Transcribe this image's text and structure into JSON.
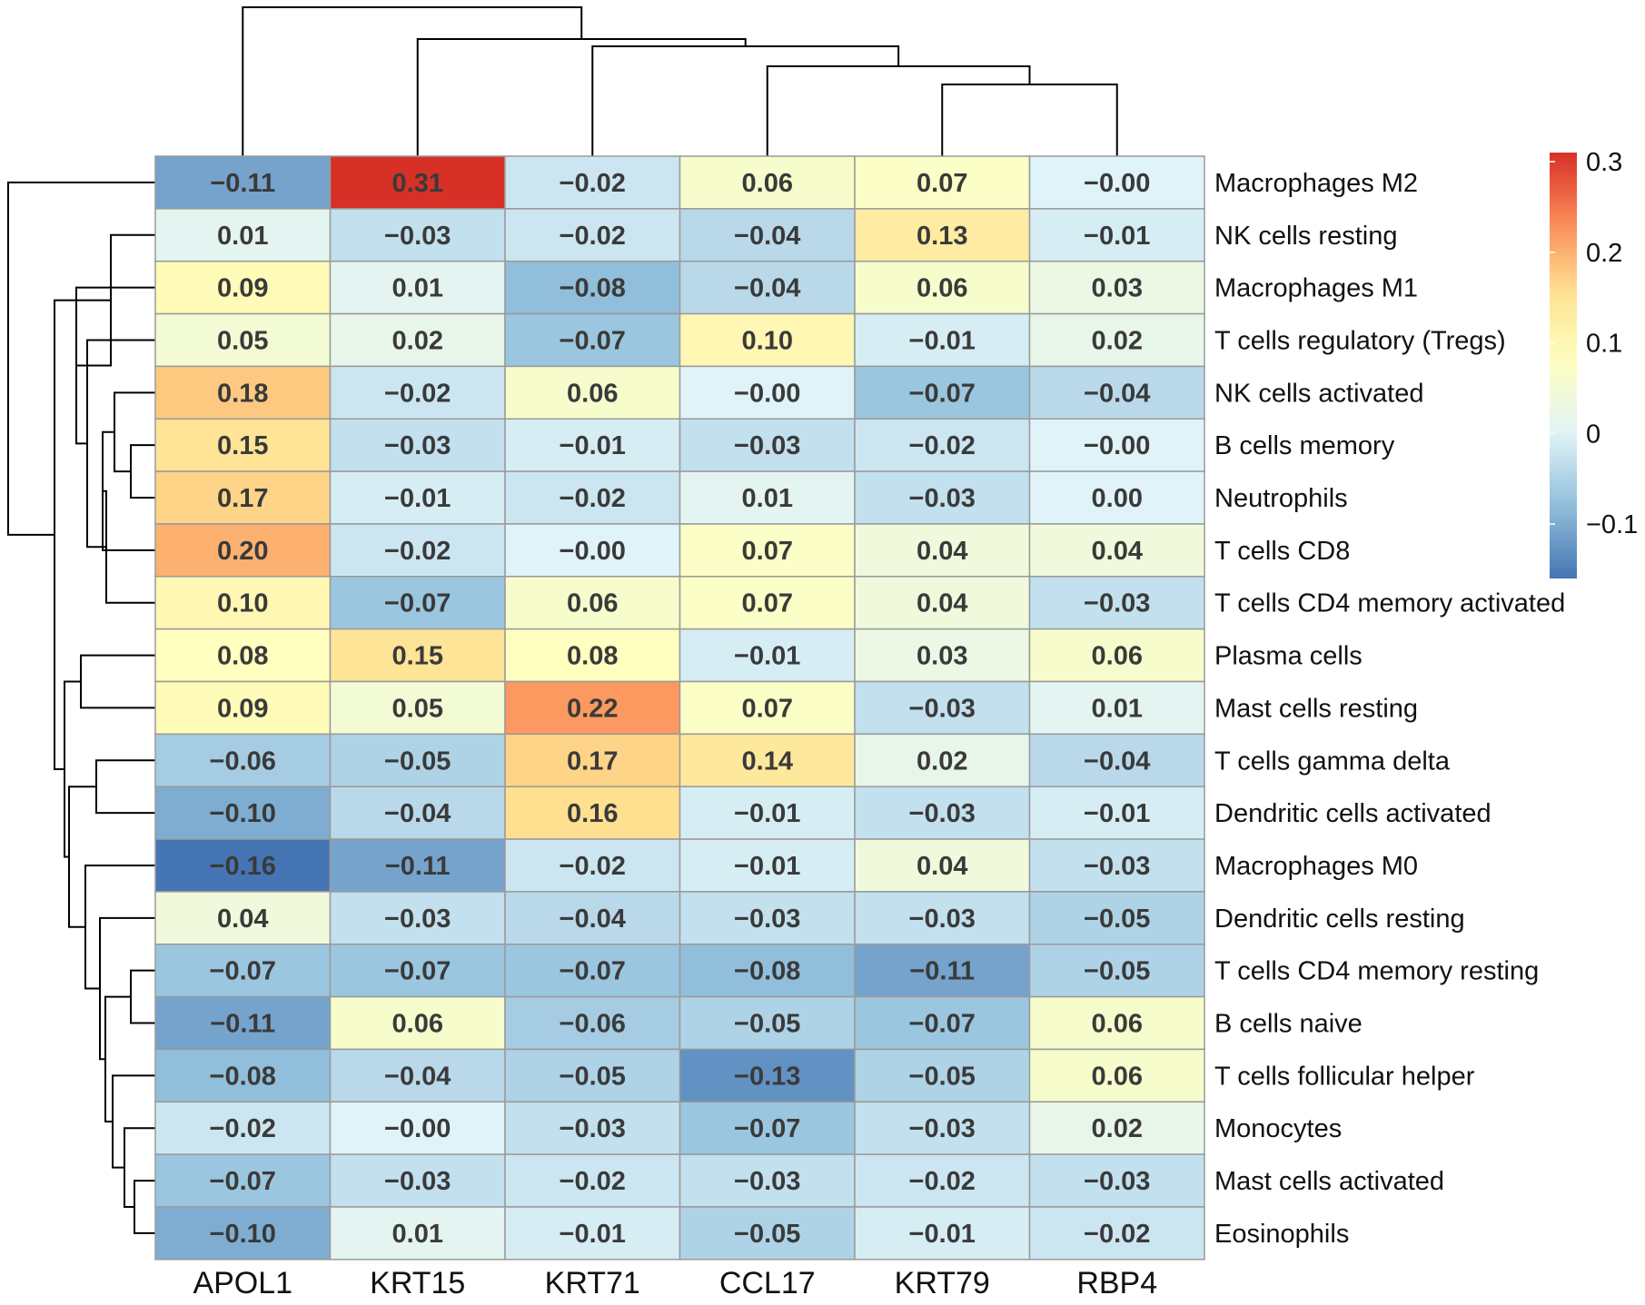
{
  "chart_data": {
    "type": "heatmap",
    "columns": [
      "APOL1",
      "KRT15",
      "KRT71",
      "CCL17",
      "KRT79",
      "RBP4"
    ],
    "rows": [
      "Macrophages M2",
      "NK cells resting",
      "Macrophages M1",
      "T cells regulatory (Tregs)",
      "NK cells activated",
      "B cells memory",
      "Neutrophils",
      "T cells CD8",
      "T cells CD4 memory activated",
      "Plasma cells",
      "Mast cells resting",
      "T cells gamma delta",
      "Dendritic cells activated",
      "Macrophages M0",
      "Dendritic cells resting",
      "T cells CD4 memory resting",
      "B cells naive",
      "T cells follicular helper",
      "Monocytes",
      "Mast cells activated",
      "Eosinophils"
    ],
    "values": [
      [
        -0.11,
        0.31,
        -0.02,
        0.06,
        0.07,
        -0.0
      ],
      [
        0.01,
        -0.03,
        -0.02,
        -0.04,
        0.13,
        -0.01
      ],
      [
        0.09,
        0.01,
        -0.08,
        -0.04,
        0.06,
        0.03
      ],
      [
        0.05,
        0.02,
        -0.07,
        0.1,
        -0.01,
        0.02
      ],
      [
        0.18,
        -0.02,
        0.06,
        -0.0,
        -0.07,
        -0.04
      ],
      [
        0.15,
        -0.03,
        -0.01,
        -0.03,
        -0.02,
        -0.0
      ],
      [
        0.17,
        -0.01,
        -0.02,
        0.01,
        -0.03,
        0.0
      ],
      [
        0.2,
        -0.02,
        -0.0,
        0.07,
        0.04,
        0.04
      ],
      [
        0.1,
        -0.07,
        0.06,
        0.07,
        0.04,
        -0.03
      ],
      [
        0.08,
        0.15,
        0.08,
        -0.01,
        0.03,
        0.06
      ],
      [
        0.09,
        0.05,
        0.22,
        0.07,
        -0.03,
        0.01
      ],
      [
        -0.06,
        -0.05,
        0.17,
        0.14,
        0.02,
        -0.04
      ],
      [
        -0.1,
        -0.04,
        0.16,
        -0.01,
        -0.03,
        -0.01
      ],
      [
        -0.16,
        -0.11,
        -0.02,
        -0.01,
        0.04,
        -0.03
      ],
      [
        0.04,
        -0.03,
        -0.04,
        -0.03,
        -0.03,
        -0.05
      ],
      [
        -0.07,
        -0.07,
        -0.07,
        -0.08,
        -0.11,
        -0.05
      ],
      [
        -0.11,
        0.06,
        -0.06,
        -0.05,
        -0.07,
        0.06
      ],
      [
        -0.08,
        -0.04,
        -0.05,
        -0.13,
        -0.05,
        0.06
      ],
      [
        -0.02,
        -0.0,
        -0.03,
        -0.07,
        -0.03,
        0.02
      ],
      [
        -0.07,
        -0.03,
        -0.02,
        -0.03,
        -0.02,
        -0.03
      ],
      [
        -0.1,
        0.01,
        -0.01,
        -0.05,
        -0.01,
        -0.02
      ]
    ],
    "labels": [
      [
        "−0.11",
        "0.31",
        "−0.02",
        "0.06",
        "0.07",
        "−0.00"
      ],
      [
        "0.01",
        "−0.03",
        "−0.02",
        "−0.04",
        "0.13",
        "−0.01"
      ],
      [
        "0.09",
        "0.01",
        "−0.08",
        "−0.04",
        "0.06",
        "0.03"
      ],
      [
        "0.05",
        "0.02",
        "−0.07",
        "0.10",
        "−0.01",
        "0.02"
      ],
      [
        "0.18",
        "−0.02",
        "0.06",
        "−0.00",
        "−0.07",
        "−0.04"
      ],
      [
        "0.15",
        "−0.03",
        "−0.01",
        "−0.03",
        "−0.02",
        "−0.00"
      ],
      [
        "0.17",
        "−0.01",
        "−0.02",
        "0.01",
        "−0.03",
        "0.00"
      ],
      [
        "0.20",
        "−0.02",
        "−0.00",
        "0.07",
        "0.04",
        "0.04"
      ],
      [
        "0.10",
        "−0.07",
        "0.06",
        "0.07",
        "0.04",
        "−0.03"
      ],
      [
        "0.08",
        "0.15",
        "0.08",
        "−0.01",
        "0.03",
        "0.06"
      ],
      [
        "0.09",
        "0.05",
        "0.22",
        "0.07",
        "−0.03",
        "0.01"
      ],
      [
        "−0.06",
        "−0.05",
        "0.17",
        "0.14",
        "0.02",
        "−0.04"
      ],
      [
        "−0.10",
        "−0.04",
        "0.16",
        "−0.01",
        "−0.03",
        "−0.01"
      ],
      [
        "−0.16",
        "−0.11",
        "−0.02",
        "−0.01",
        "0.04",
        "−0.03"
      ],
      [
        "0.04",
        "−0.03",
        "−0.04",
        "−0.03",
        "−0.03",
        "−0.05"
      ],
      [
        "−0.07",
        "−0.07",
        "−0.07",
        "−0.08",
        "−0.11",
        "−0.05"
      ],
      [
        "−0.11",
        "0.06",
        "−0.06",
        "−0.05",
        "−0.07",
        "0.06"
      ],
      [
        "−0.08",
        "−0.04",
        "−0.05",
        "−0.13",
        "−0.05",
        "0.06"
      ],
      [
        "−0.02",
        "−0.00",
        "−0.03",
        "−0.07",
        "−0.03",
        "0.02"
      ],
      [
        "−0.07",
        "−0.03",
        "−0.02",
        "−0.03",
        "−0.02",
        "−0.03"
      ],
      [
        "−0.10",
        "0.01",
        "−0.01",
        "−0.05",
        "−0.01",
        "−0.02"
      ]
    ],
    "colorbar": {
      "range": [
        -0.16,
        0.31
      ],
      "ticks": [
        0.3,
        0.2,
        0.1,
        0,
        -0.1
      ],
      "tick_labels": [
        "0.3",
        "0.2",
        "0.1",
        "0",
        "−0.1"
      ],
      "stops": [
        {
          "value": -0.16,
          "color": "#4575b4"
        },
        {
          "value": -0.08,
          "color": "#91bfdb"
        },
        {
          "value": 0.0,
          "color": "#e0f3f8"
        },
        {
          "value": 0.08,
          "color": "#ffffbf"
        },
        {
          "value": 0.16,
          "color": "#fee090"
        },
        {
          "value": 0.23,
          "color": "#fc8d59"
        },
        {
          "value": 0.31,
          "color": "#d73027"
        }
      ]
    },
    "row_dendrogram": true,
    "column_dendrogram": true,
    "title": "",
    "xlabel": "",
    "ylabel": ""
  }
}
